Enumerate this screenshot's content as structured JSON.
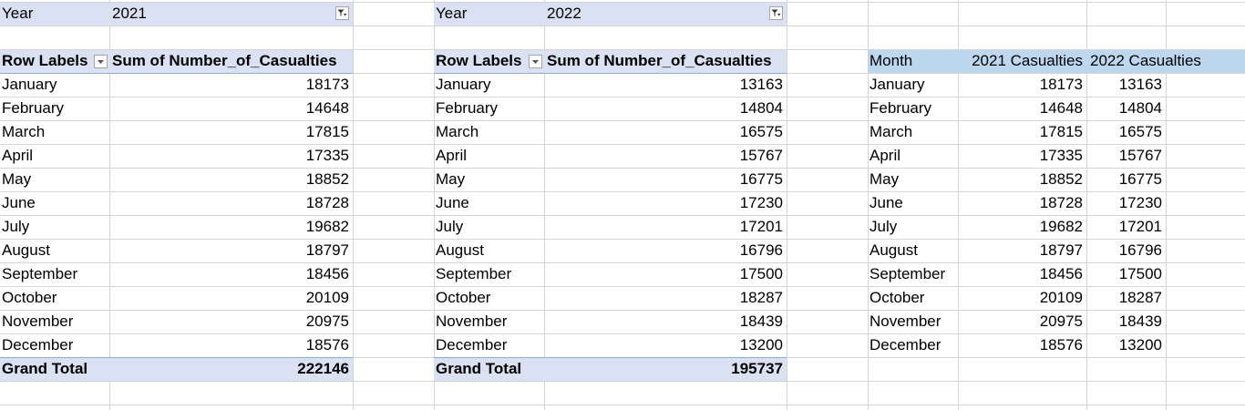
{
  "filters": [
    {
      "label": "Year",
      "value": "2021"
    },
    {
      "label": "Year",
      "value": "2022"
    }
  ],
  "pivot_2021": {
    "row_labels_header": "Row Labels",
    "values_header": "Sum of Number_of_Casualties",
    "rows": [
      {
        "month": "January",
        "value": "18173"
      },
      {
        "month": "February",
        "value": "14648"
      },
      {
        "month": "March",
        "value": "17815"
      },
      {
        "month": "April",
        "value": "17335"
      },
      {
        "month": "May",
        "value": "18852"
      },
      {
        "month": "June",
        "value": "18728"
      },
      {
        "month": "July",
        "value": "19682"
      },
      {
        "month": "August",
        "value": "18797"
      },
      {
        "month": "September",
        "value": "18456"
      },
      {
        "month": "October",
        "value": "20109"
      },
      {
        "month": "November",
        "value": "20975"
      },
      {
        "month": "December",
        "value": "18576"
      }
    ],
    "grand_total_label": "Grand Total",
    "grand_total_value": "222146"
  },
  "pivot_2022": {
    "row_labels_header": "Row Labels",
    "values_header": "Sum of Number_of_Casualties",
    "rows": [
      {
        "month": "January",
        "value": "13163"
      },
      {
        "month": "February",
        "value": "14804"
      },
      {
        "month": "March",
        "value": "16575"
      },
      {
        "month": "April",
        "value": "15767"
      },
      {
        "month": "May",
        "value": "16775"
      },
      {
        "month": "June",
        "value": "17230"
      },
      {
        "month": "July",
        "value": "17201"
      },
      {
        "month": "August",
        "value": "16796"
      },
      {
        "month": "September",
        "value": "17500"
      },
      {
        "month": "October",
        "value": "18287"
      },
      {
        "month": "November",
        "value": "18439"
      },
      {
        "month": "December",
        "value": "13200"
      }
    ],
    "grand_total_label": "Grand Total",
    "grand_total_value": "195737"
  },
  "summary": {
    "headers": [
      "Month",
      "2021 Casualties",
      "2022 Casualties"
    ],
    "rows": [
      {
        "month": "January",
        "y2021": "18173",
        "y2022": "13163"
      },
      {
        "month": "February",
        "y2021": "14648",
        "y2022": "14804"
      },
      {
        "month": "March",
        "y2021": "17815",
        "y2022": "16575"
      },
      {
        "month": "April",
        "y2021": "17335",
        "y2022": "15767"
      },
      {
        "month": "May",
        "y2021": "18852",
        "y2022": "16775"
      },
      {
        "month": "June",
        "y2021": "18728",
        "y2022": "17230"
      },
      {
        "month": "July",
        "y2021": "19682",
        "y2022": "17201"
      },
      {
        "month": "August",
        "y2021": "18797",
        "y2022": "16796"
      },
      {
        "month": "September",
        "y2021": "18456",
        "y2022": "17500"
      },
      {
        "month": "October",
        "y2021": "20109",
        "y2022": "18287"
      },
      {
        "month": "November",
        "y2021": "20975",
        "y2022": "18439"
      },
      {
        "month": "December",
        "y2021": "18576",
        "y2022": "13200"
      }
    ]
  },
  "icons": {
    "filter": "filter-dropdown-icon",
    "sort": "sort-dropdown-icon"
  },
  "colors": {
    "pivot_header_band": "#d9e1f2",
    "table_header_band": "#bdd7ee",
    "gridline": "#d4d4d4"
  }
}
